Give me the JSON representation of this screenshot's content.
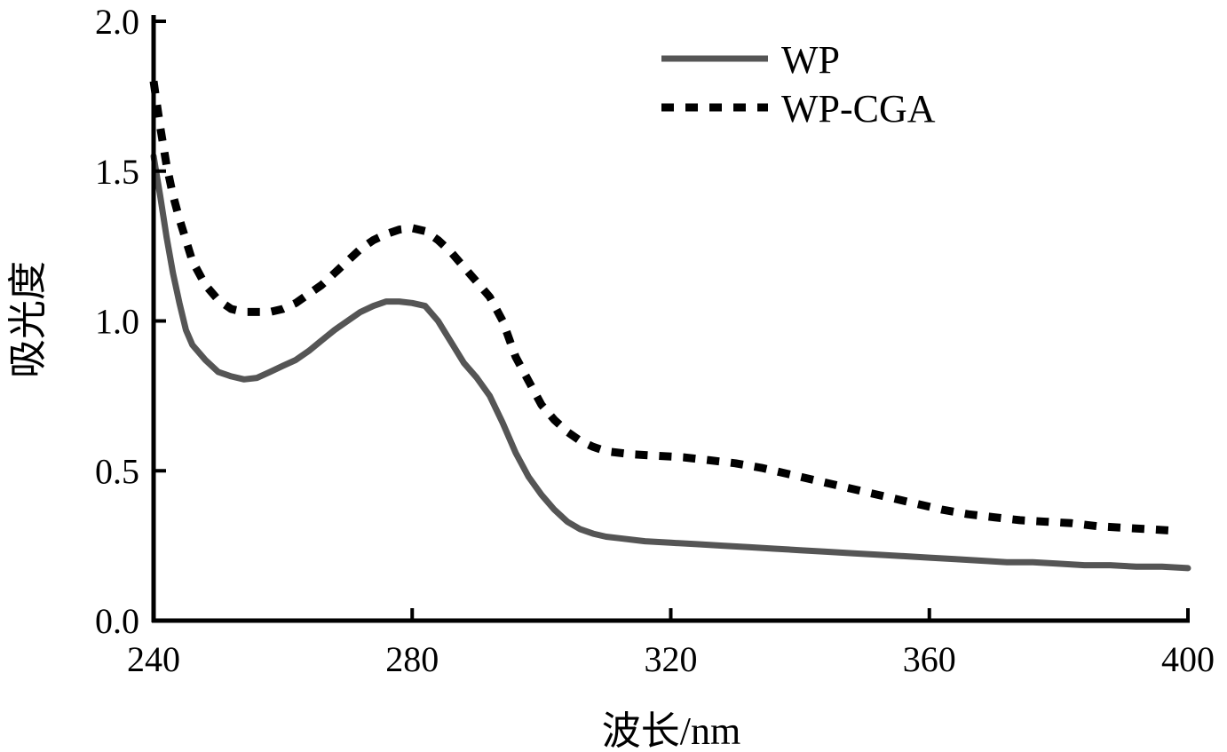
{
  "chart_data": {
    "type": "line",
    "xlabel": "波长/nm",
    "ylabel": "吸光度",
    "xlim": [
      240,
      400
    ],
    "ylim": [
      0.0,
      2.0
    ],
    "x_ticks": [
      240,
      280,
      320,
      360,
      400
    ],
    "x_tick_labels": [
      "240",
      "280",
      "320",
      "360",
      "400"
    ],
    "y_ticks": [
      0.0,
      0.5,
      1.0,
      1.5,
      2.0
    ],
    "y_tick_labels": [
      "0.0",
      "0.5",
      "1.0",
      "1.5",
      "2.0"
    ],
    "grid": false,
    "legend_position": "top-right",
    "series": [
      {
        "name": "WP",
        "style": "solid",
        "color": "#555555",
        "points": [
          [
            240,
            1.55
          ],
          [
            241,
            1.42
          ],
          [
            242,
            1.28
          ],
          [
            243,
            1.16
          ],
          [
            244,
            1.06
          ],
          [
            245,
            0.97
          ],
          [
            246,
            0.92
          ],
          [
            248,
            0.87
          ],
          [
            250,
            0.83
          ],
          [
            252,
            0.815
          ],
          [
            254,
            0.805
          ],
          [
            256,
            0.81
          ],
          [
            258,
            0.83
          ],
          [
            260,
            0.85
          ],
          [
            262,
            0.87
          ],
          [
            264,
            0.9
          ],
          [
            266,
            0.935
          ],
          [
            268,
            0.97
          ],
          [
            270,
            1.0
          ],
          [
            272,
            1.03
          ],
          [
            274,
            1.05
          ],
          [
            276,
            1.065
          ],
          [
            278,
            1.065
          ],
          [
            280,
            1.06
          ],
          [
            282,
            1.05
          ],
          [
            284,
            1.0
          ],
          [
            286,
            0.93
          ],
          [
            288,
            0.86
          ],
          [
            290,
            0.81
          ],
          [
            292,
            0.75
          ],
          [
            294,
            0.66
          ],
          [
            296,
            0.56
          ],
          [
            298,
            0.48
          ],
          [
            300,
            0.42
          ],
          [
            302,
            0.37
          ],
          [
            304,
            0.33
          ],
          [
            306,
            0.305
          ],
          [
            308,
            0.29
          ],
          [
            310,
            0.28
          ],
          [
            312,
            0.275
          ],
          [
            316,
            0.265
          ],
          [
            320,
            0.26
          ],
          [
            324,
            0.255
          ],
          [
            328,
            0.25
          ],
          [
            332,
            0.245
          ],
          [
            336,
            0.24
          ],
          [
            340,
            0.235
          ],
          [
            344,
            0.23
          ],
          [
            348,
            0.225
          ],
          [
            352,
            0.22
          ],
          [
            356,
            0.215
          ],
          [
            360,
            0.21
          ],
          [
            364,
            0.205
          ],
          [
            368,
            0.2
          ],
          [
            372,
            0.195
          ],
          [
            376,
            0.195
          ],
          [
            380,
            0.19
          ],
          [
            384,
            0.185
          ],
          [
            388,
            0.185
          ],
          [
            392,
            0.18
          ],
          [
            396,
            0.18
          ],
          [
            400,
            0.175
          ]
        ]
      },
      {
        "name": "WP-CGA",
        "style": "dotted",
        "color": "#000000",
        "points": [
          [
            240,
            1.8
          ],
          [
            241,
            1.65
          ],
          [
            242,
            1.52
          ],
          [
            243,
            1.42
          ],
          [
            244,
            1.34
          ],
          [
            245,
            1.27
          ],
          [
            246,
            1.2
          ],
          [
            248,
            1.12
          ],
          [
            250,
            1.07
          ],
          [
            252,
            1.04
          ],
          [
            254,
            1.03
          ],
          [
            256,
            1.03
          ],
          [
            258,
            1.03
          ],
          [
            260,
            1.04
          ],
          [
            262,
            1.06
          ],
          [
            264,
            1.09
          ],
          [
            266,
            1.12
          ],
          [
            268,
            1.16
          ],
          [
            270,
            1.2
          ],
          [
            272,
            1.24
          ],
          [
            274,
            1.27
          ],
          [
            276,
            1.29
          ],
          [
            278,
            1.305
          ],
          [
            280,
            1.31
          ],
          [
            282,
            1.3
          ],
          [
            284,
            1.27
          ],
          [
            286,
            1.23
          ],
          [
            288,
            1.18
          ],
          [
            290,
            1.13
          ],
          [
            292,
            1.08
          ],
          [
            294,
            1.0
          ],
          [
            296,
            0.88
          ],
          [
            298,
            0.8
          ],
          [
            300,
            0.72
          ],
          [
            302,
            0.67
          ],
          [
            304,
            0.63
          ],
          [
            306,
            0.6
          ],
          [
            308,
            0.58
          ],
          [
            310,
            0.565
          ],
          [
            314,
            0.555
          ],
          [
            318,
            0.55
          ],
          [
            322,
            0.545
          ],
          [
            326,
            0.535
          ],
          [
            330,
            0.525
          ],
          [
            334,
            0.51
          ],
          [
            338,
            0.49
          ],
          [
            342,
            0.47
          ],
          [
            346,
            0.45
          ],
          [
            350,
            0.43
          ],
          [
            354,
            0.41
          ],
          [
            358,
            0.39
          ],
          [
            362,
            0.37
          ],
          [
            366,
            0.355
          ],
          [
            370,
            0.345
          ],
          [
            374,
            0.335
          ],
          [
            378,
            0.33
          ],
          [
            382,
            0.325
          ],
          [
            386,
            0.315
          ],
          [
            390,
            0.31
          ],
          [
            394,
            0.305
          ],
          [
            398,
            0.3
          ]
        ]
      }
    ]
  }
}
